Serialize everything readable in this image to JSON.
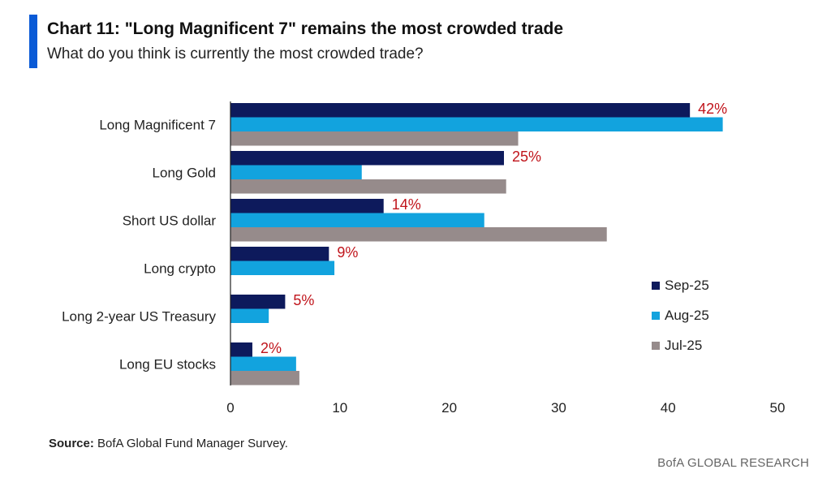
{
  "header": {
    "title": "Chart 11: \"Long Magnificent 7\" remains the most crowded trade",
    "subtitle": "What do you think is currently the most crowded trade?"
  },
  "footer": {
    "source_label": "Source:",
    "source_text": " BofA Global Fund Manager Survey.",
    "brand": "BofA GLOBAL RESEARCH"
  },
  "colors": {
    "accent": "#0a5ad6",
    "sep": "#0d1a5c",
    "aug": "#12a3de",
    "jul": "#968b8b",
    "label": "#c0141b"
  },
  "chart_data": {
    "type": "bar",
    "orientation": "horizontal",
    "categories": [
      "Long Magnificent 7",
      "Long Gold",
      "Short US dollar",
      "Long crypto",
      "Long 2-year US Treasury",
      "Long EU stocks"
    ],
    "series": [
      {
        "name": "Sep-25",
        "values": [
          42,
          25,
          14,
          9,
          5,
          2
        ],
        "color": "#0d1a5c"
      },
      {
        "name": "Aug-25",
        "values": [
          45,
          12,
          23.2,
          9.5,
          3.5,
          6
        ],
        "color": "#12a3de"
      },
      {
        "name": "Jul-25",
        "values": [
          26.3,
          25.2,
          34.4,
          null,
          null,
          6.3
        ],
        "color": "#968b8b"
      }
    ],
    "data_labels": [
      "42%",
      "25%",
      "14%",
      "9%",
      "5%",
      "2%"
    ],
    "xlim": [
      0,
      50
    ],
    "xticks": [
      "0",
      "10",
      "20",
      "30",
      "40",
      "50"
    ],
    "grid": false,
    "legend_position": "right"
  }
}
